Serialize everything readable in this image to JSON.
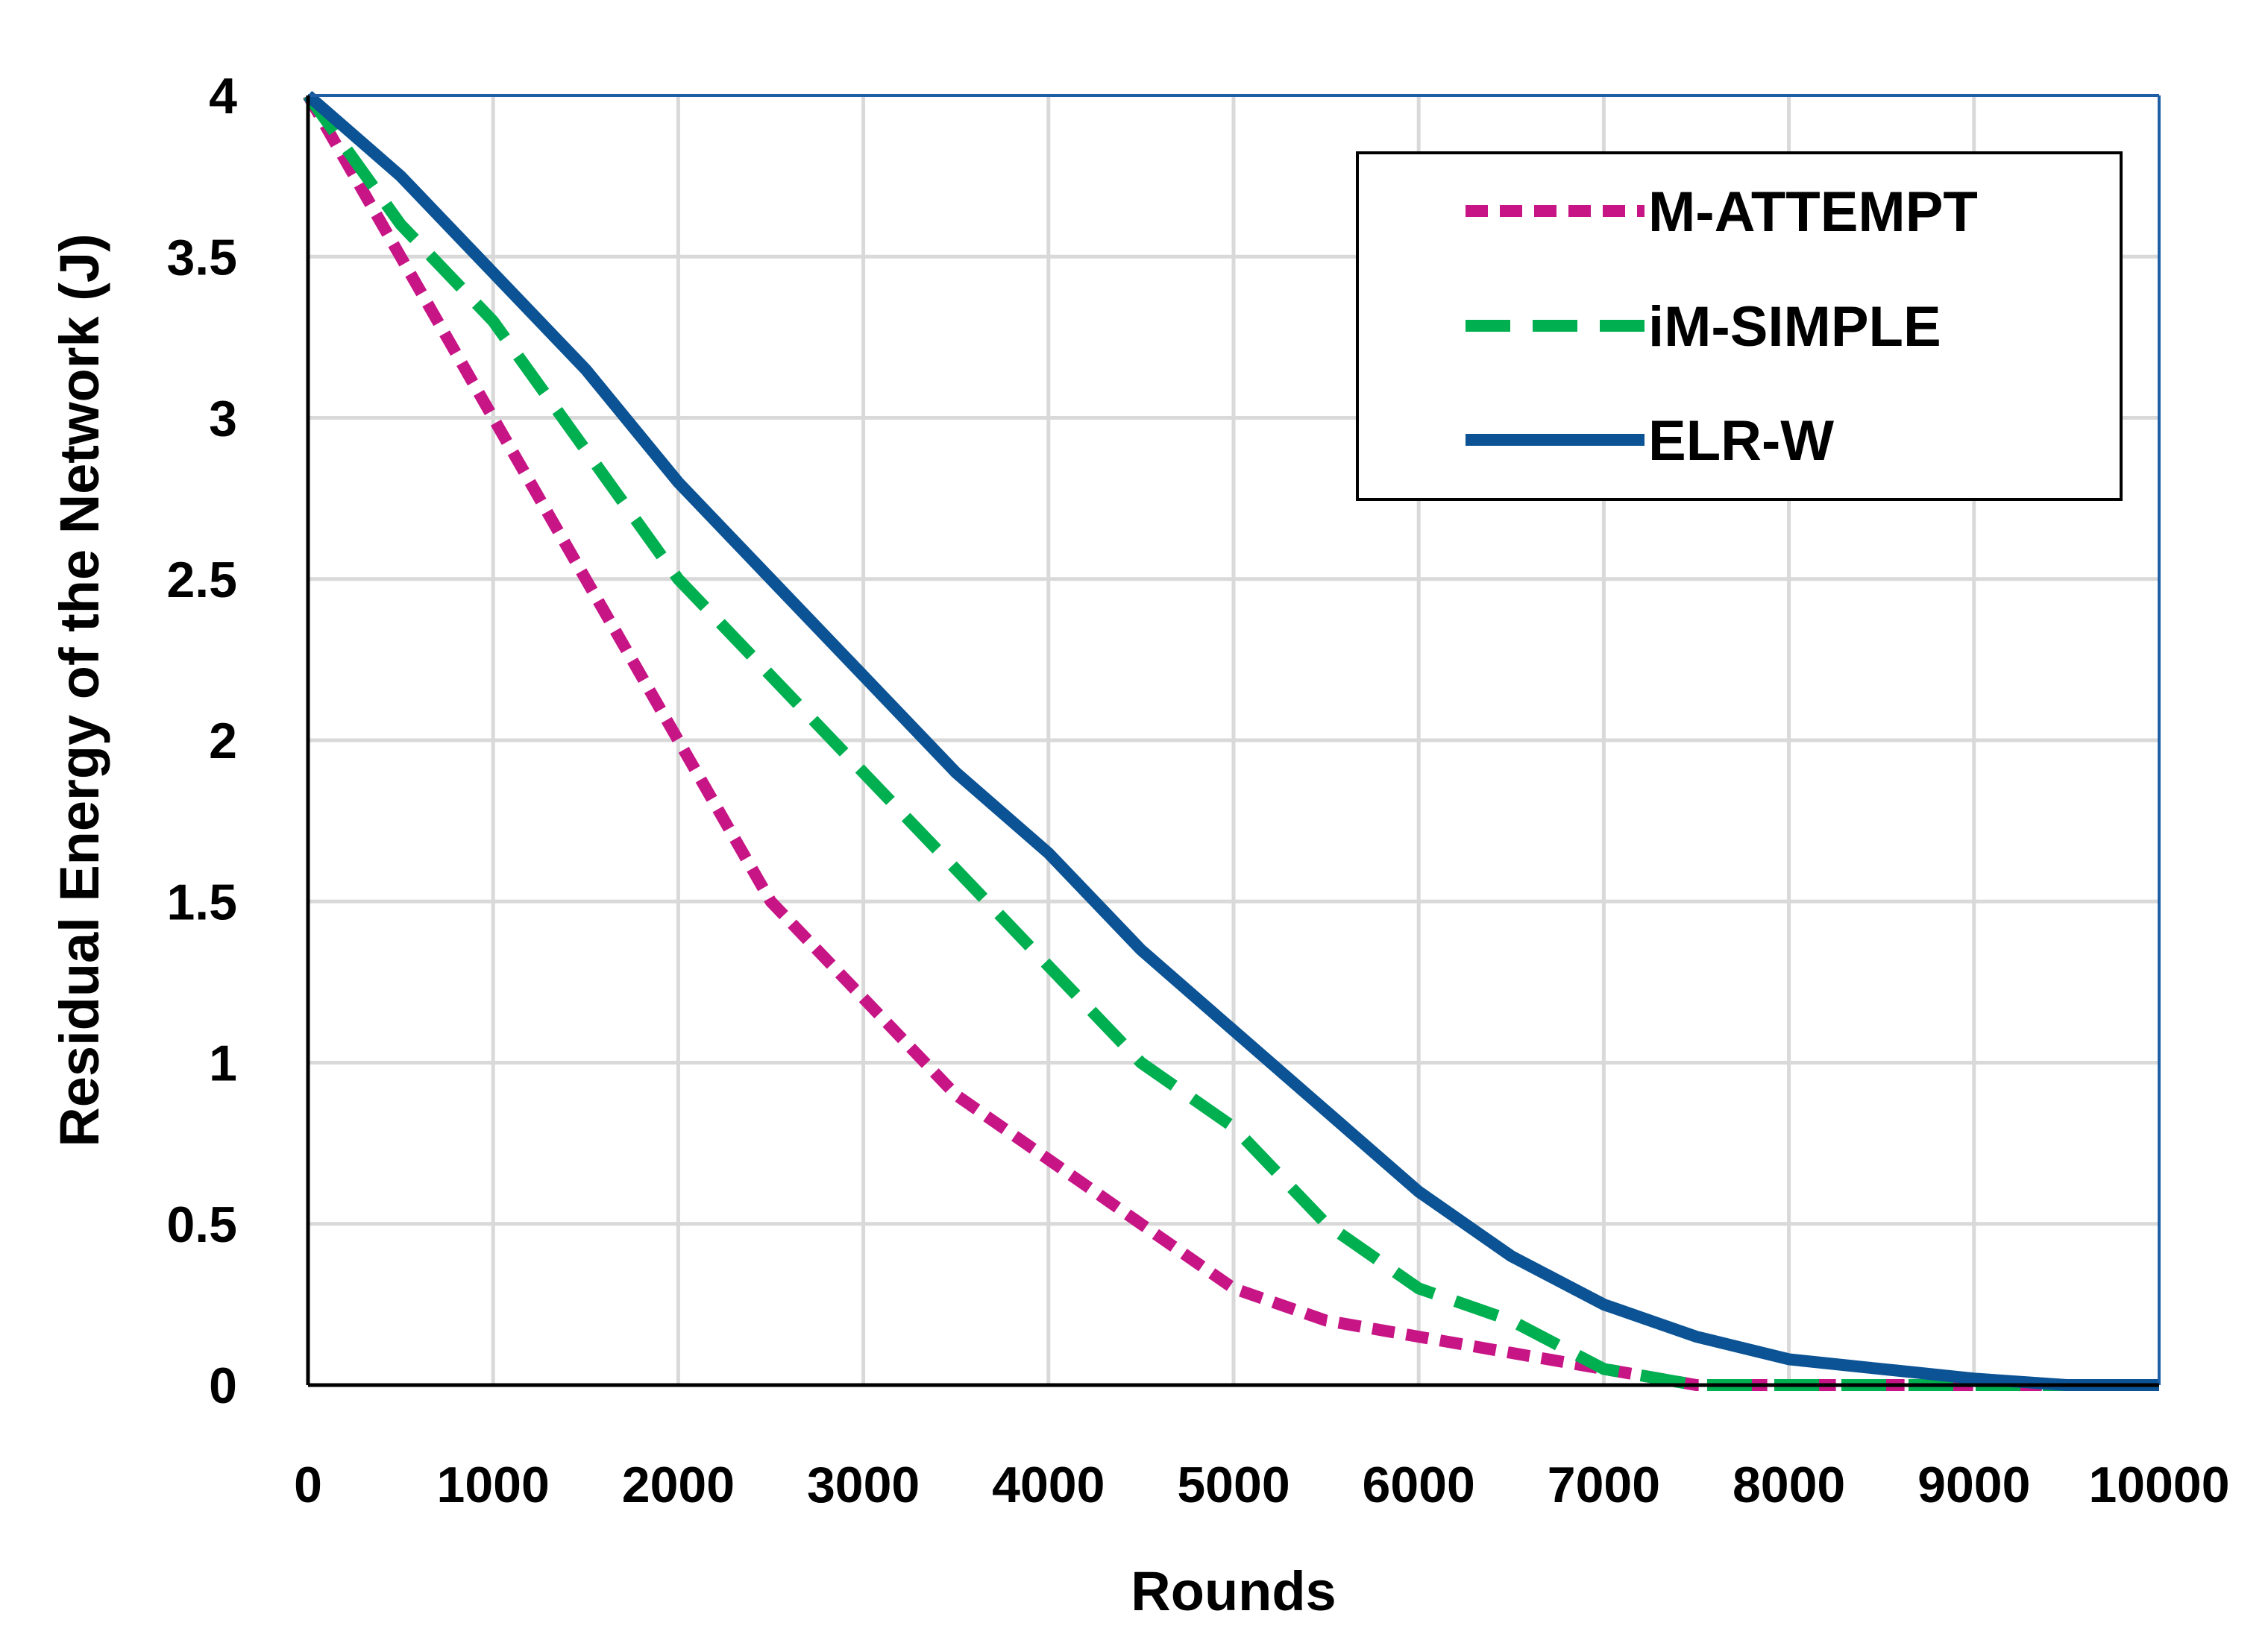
{
  "chart_data": {
    "type": "line",
    "title": "",
    "xlabel": "Rounds",
    "ylabel": "Residual Energy of the Network (J)",
    "xlim": [
      0,
      10000
    ],
    "ylim": [
      0,
      4
    ],
    "x_ticks": [
      0,
      1000,
      2000,
      3000,
      4000,
      5000,
      6000,
      7000,
      8000,
      9000,
      10000
    ],
    "y_ticks": [
      0,
      0.5,
      1,
      1.5,
      2,
      2.5,
      3,
      3.5,
      4
    ],
    "x_tick_labels": [
      "0",
      "1000",
      "2000",
      "3000",
      "4000",
      "5000",
      "6000",
      "7000",
      "8000",
      "9000",
      "10000"
    ],
    "y_tick_labels": [
      "0",
      "0.5",
      "1",
      "1.5",
      "2",
      "2.5",
      "3",
      "3.5",
      "4"
    ],
    "grid": true,
    "legend_position": "top-right",
    "series": [
      {
        "name": "M-ATTEMPT",
        "color": "#C71585",
        "style": "short-dash",
        "x": [
          0,
          500,
          1000,
          1500,
          2000,
          2500,
          3000,
          3500,
          4000,
          4500,
          5000,
          5500,
          6000,
          6500,
          7000,
          7500,
          8000,
          8500,
          9000,
          9500,
          10000
        ],
        "values": [
          4.0,
          3.5,
          3.0,
          2.5,
          2.0,
          1.5,
          1.2,
          0.9,
          0.7,
          0.5,
          0.3,
          0.2,
          0.15,
          0.1,
          0.05,
          0.0,
          0.0,
          0.0,
          0.0,
          0.0,
          0.0
        ]
      },
      {
        "name": "iM-SIMPLE",
        "color": "#00B050",
        "style": "long-dash",
        "x": [
          0,
          500,
          1000,
          1500,
          2000,
          2500,
          3000,
          3500,
          4000,
          4500,
          5000,
          5500,
          6000,
          6500,
          7000,
          7500,
          8000,
          8500,
          9000,
          9500,
          10000
        ],
        "values": [
          4.0,
          3.6,
          3.3,
          2.9,
          2.5,
          2.2,
          1.9,
          1.6,
          1.3,
          1.0,
          0.8,
          0.5,
          0.3,
          0.2,
          0.05,
          0.0,
          0.0,
          0.0,
          0.0,
          0.0,
          0.0
        ]
      },
      {
        "name": "ELR-W",
        "color": "#0B5394",
        "style": "solid",
        "x": [
          0,
          500,
          1000,
          1500,
          2000,
          2500,
          3000,
          3500,
          4000,
          4500,
          5000,
          5500,
          6000,
          6500,
          7000,
          7500,
          8000,
          8500,
          9000,
          9500,
          10000
        ],
        "values": [
          4.0,
          3.75,
          3.45,
          3.15,
          2.8,
          2.5,
          2.2,
          1.9,
          1.65,
          1.35,
          1.1,
          0.85,
          0.6,
          0.4,
          0.25,
          0.15,
          0.08,
          0.05,
          0.02,
          0.0,
          0.0
        ]
      }
    ]
  },
  "colors": {
    "grid": "#D9D9D9",
    "plot_border": "#1F5FA6",
    "axis": "#000000",
    "legend_border": "#000000"
  }
}
